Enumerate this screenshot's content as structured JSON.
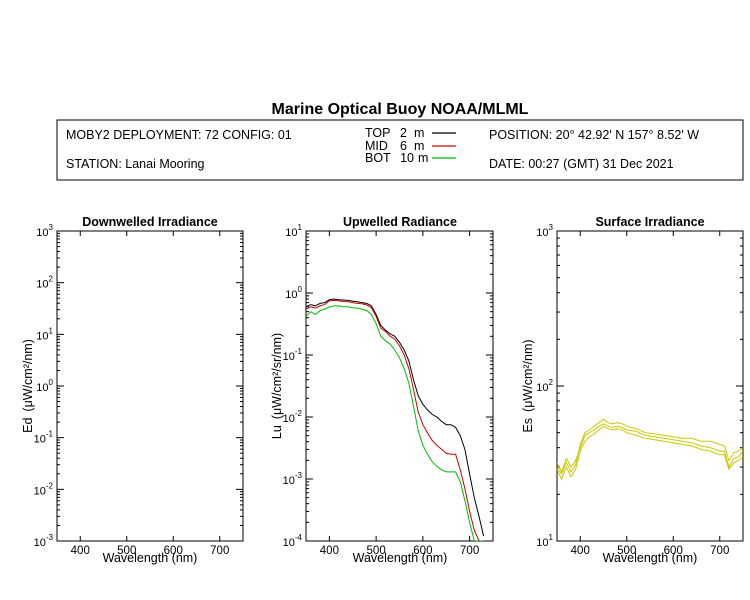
{
  "header": {
    "title": "Marine Optical Buoy NOAA/MLML",
    "deployment": "MOBY2 DEPLOYMENT: 72 CONFIG: 01",
    "station": "STATION: Lanai Mooring",
    "position": "POSITION: 20° 42.92' N   157° 8.52' W",
    "date": "DATE: 00:27 (GMT) 31 Dec 2021",
    "legend": [
      {
        "name": "TOP",
        "depth": "2",
        "unit": "m",
        "color": "#000000"
      },
      {
        "name": "MID",
        "depth": "6",
        "unit": "m",
        "color": "#cc0000"
      },
      {
        "name": "BOT",
        "depth": "10",
        "unit": "m",
        "color": "#00bb00"
      }
    ]
  },
  "chart_data": [
    {
      "type": "line",
      "title": "Downwelled Irradiance",
      "xlabel": "Wavelength (nm)",
      "ylabel": "Ed",
      "yunit": "(μW/cm²/nm)",
      "xlim": [
        350,
        750
      ],
      "ylim": [
        0.001,
        1000
      ],
      "yscale": "log",
      "xticks": [
        400,
        500,
        600,
        700
      ],
      "yticks": [
        {
          "value": 0.001,
          "exp": "-3"
        },
        {
          "value": 0.01,
          "exp": "-2"
        },
        {
          "value": 0.1,
          "exp": "-1"
        },
        {
          "value": 1,
          "exp": "0"
        },
        {
          "value": 10,
          "exp": "1"
        },
        {
          "value": 100,
          "exp": "2"
        },
        {
          "value": 1000,
          "exp": "3"
        }
      ],
      "series": []
    },
    {
      "type": "line",
      "title": "Upwelled Radiance",
      "xlabel": "Wavelength (nm)",
      "ylabel": "Lu",
      "yunit": "(μW/cm²/sr/nm)",
      "xlim": [
        350,
        750
      ],
      "ylim": [
        0.0001,
        10
      ],
      "yscale": "log",
      "xticks": [
        400,
        500,
        600,
        700
      ],
      "yticks": [
        {
          "value": 0.0001,
          "exp": "-4"
        },
        {
          "value": 0.001,
          "exp": "-3"
        },
        {
          "value": 0.01,
          "exp": "-2"
        },
        {
          "value": 0.1,
          "exp": "-1"
        },
        {
          "value": 1,
          "exp": "0"
        },
        {
          "value": 10,
          "exp": "1"
        }
      ],
      "series": [
        {
          "name": "TOP",
          "color": "#000000",
          "x": [
            350,
            360,
            370,
            380,
            390,
            400,
            410,
            420,
            430,
            440,
            450,
            460,
            470,
            480,
            490,
            500,
            510,
            520,
            530,
            540,
            550,
            560,
            570,
            580,
            590,
            600,
            610,
            620,
            630,
            640,
            650,
            660,
            670,
            680,
            690,
            700,
            710,
            720,
            730
          ],
          "values": [
            0.6,
            0.65,
            0.62,
            0.68,
            0.7,
            0.78,
            0.8,
            0.78,
            0.77,
            0.76,
            0.74,
            0.72,
            0.7,
            0.68,
            0.62,
            0.45,
            0.3,
            0.25,
            0.22,
            0.2,
            0.16,
            0.12,
            0.08,
            0.04,
            0.022,
            0.016,
            0.013,
            0.011,
            0.01,
            0.0085,
            0.0075,
            0.0075,
            0.0068,
            0.005,
            0.003,
            0.0012,
            0.0005,
            0.00025,
            0.00012
          ]
        },
        {
          "name": "MID",
          "color": "#cc0000",
          "x": [
            350,
            360,
            370,
            380,
            390,
            400,
            410,
            420,
            430,
            440,
            450,
            460,
            470,
            480,
            490,
            500,
            510,
            520,
            530,
            540,
            550,
            560,
            570,
            580,
            590,
            600,
            610,
            620,
            630,
            640,
            650,
            660,
            670,
            680,
            690,
            700,
            710,
            720,
            730
          ],
          "values": [
            0.55,
            0.6,
            0.57,
            0.62,
            0.65,
            0.75,
            0.76,
            0.75,
            0.73,
            0.72,
            0.7,
            0.68,
            0.67,
            0.64,
            0.58,
            0.42,
            0.27,
            0.24,
            0.2,
            0.18,
            0.14,
            0.1,
            0.06,
            0.028,
            0.012,
            0.0075,
            0.0055,
            0.0042,
            0.0035,
            0.003,
            0.0026,
            0.0025,
            0.0025,
            0.0014,
            0.0007,
            0.0003,
            0.00015,
            0.0001,
            0.0001
          ]
        },
        {
          "name": "BOT",
          "color": "#00bb00",
          "x": [
            350,
            360,
            370,
            380,
            390,
            400,
            410,
            420,
            430,
            440,
            450,
            460,
            470,
            480,
            490,
            500,
            510,
            520,
            530,
            540,
            550,
            560,
            570,
            580,
            590,
            600,
            610,
            620,
            630,
            640,
            650,
            660,
            670,
            680,
            690,
            700,
            710,
            720,
            730
          ],
          "values": [
            0.42,
            0.5,
            0.45,
            0.52,
            0.55,
            0.6,
            0.62,
            0.62,
            0.6,
            0.6,
            0.58,
            0.57,
            0.55,
            0.52,
            0.45,
            0.32,
            0.2,
            0.17,
            0.15,
            0.12,
            0.09,
            0.06,
            0.035,
            0.015,
            0.006,
            0.0035,
            0.0025,
            0.0019,
            0.0016,
            0.0014,
            0.0013,
            0.0013,
            0.0013,
            0.0009,
            0.00045,
            0.0002,
            0.0001,
            0.0001,
            0.0001
          ]
        }
      ]
    },
    {
      "type": "line",
      "title": "Surface Irradiance",
      "xlabel": "Wavelength (nm)",
      "ylabel": "Es",
      "yunit": "(μW/cm²/nm)",
      "xlim": [
        350,
        750
      ],
      "ylim": [
        10,
        1000
      ],
      "yscale": "log",
      "xticks": [
        400,
        500,
        600,
        700
      ],
      "yticks": [
        {
          "value": 10,
          "exp": "1"
        },
        {
          "value": 100,
          "exp": "2"
        },
        {
          "value": 1000,
          "exp": "3"
        }
      ],
      "series": [
        {
          "name": "Es-1",
          "color": "#c8c800",
          "x": [
            350,
            360,
            370,
            380,
            390,
            400,
            410,
            420,
            430,
            440,
            450,
            460,
            470,
            480,
            490,
            500,
            520,
            540,
            560,
            580,
            600,
            620,
            640,
            660,
            680,
            700,
            710,
            720,
            730,
            740,
            750
          ],
          "values": [
            32,
            28,
            34,
            30,
            33,
            40,
            48,
            50,
            52,
            55,
            57,
            55,
            54,
            55,
            54,
            52,
            51,
            48,
            47,
            46,
            45,
            44,
            43,
            41,
            40,
            38,
            38,
            30,
            34,
            35,
            38
          ]
        },
        {
          "name": "Es-2",
          "color": "#c8c800",
          "x": [
            350,
            360,
            370,
            380,
            390,
            400,
            410,
            420,
            430,
            440,
            450,
            460,
            470,
            480,
            490,
            500,
            520,
            540,
            560,
            580,
            600,
            620,
            640,
            660,
            680,
            700,
            710,
            720,
            730,
            740,
            750
          ],
          "values": [
            30,
            27,
            32,
            28,
            31,
            42,
            50,
            52,
            55,
            58,
            61,
            58,
            57,
            58,
            57,
            55,
            53,
            50,
            49,
            48,
            47,
            46,
            46,
            44,
            44,
            42,
            41,
            33,
            37,
            38,
            40
          ]
        },
        {
          "name": "Es-3",
          "color": "#c8c800",
          "x": [
            350,
            360,
            370,
            380,
            390,
            400,
            410,
            420,
            430,
            440,
            450,
            460,
            470,
            480,
            490,
            500,
            520,
            540,
            560,
            580,
            600,
            620,
            640,
            660,
            680,
            700,
            710,
            720,
            730,
            740,
            750
          ],
          "values": [
            29,
            25,
            30,
            26,
            29,
            38,
            44,
            47,
            49,
            52,
            55,
            53,
            52,
            53,
            52,
            50,
            48,
            46,
            45,
            44,
            43,
            42,
            41,
            39,
            38,
            36,
            36,
            29,
            32,
            33,
            35
          ]
        }
      ]
    }
  ]
}
